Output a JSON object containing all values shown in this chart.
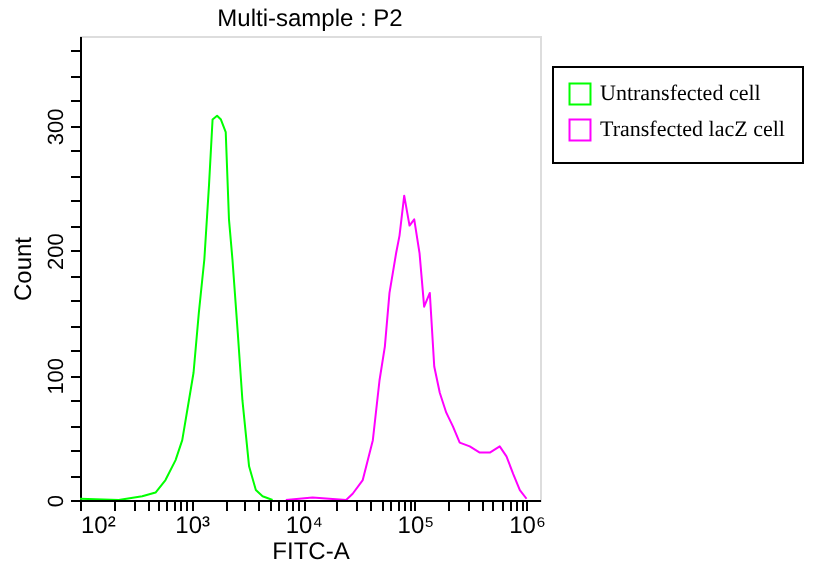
{
  "chart_data": {
    "type": "line",
    "title": "Multi-sample : P2",
    "xlabel": "FITC-A",
    "ylabel": "Count",
    "xlim": [
      100,
      1320000
    ],
    "ylim": [
      0,
      372
    ],
    "xticks": [
      {
        "value": 100,
        "label": "10²"
      },
      {
        "value": 200,
        "label": null
      },
      {
        "value": 300,
        "label": null
      },
      {
        "value": 400,
        "label": null
      },
      {
        "value": 500,
        "label": null
      },
      {
        "value": 600,
        "label": null
      },
      {
        "value": 700,
        "label": null
      },
      {
        "value": 800,
        "label": null
      },
      {
        "value": 900,
        "label": null
      },
      {
        "value": 1000,
        "label": "10³"
      },
      {
        "value": 2000,
        "label": null
      },
      {
        "value": 3000,
        "label": null
      },
      {
        "value": 4000,
        "label": null
      },
      {
        "value": 5000,
        "label": null
      },
      {
        "value": 6000,
        "label": null
      },
      {
        "value": 7000,
        "label": null
      },
      {
        "value": 8000,
        "label": null
      },
      {
        "value": 9000,
        "label": null
      },
      {
        "value": 10000,
        "label": "10⁴"
      },
      {
        "value": 20000,
        "label": null
      },
      {
        "value": 30000,
        "label": null
      },
      {
        "value": 40000,
        "label": null
      },
      {
        "value": 50000,
        "label": null
      },
      {
        "value": 60000,
        "label": null
      },
      {
        "value": 70000,
        "label": null
      },
      {
        "value": 80000,
        "label": null
      },
      {
        "value": 90000,
        "label": null
      },
      {
        "value": 100000,
        "label": "10⁵"
      },
      {
        "value": 200000,
        "label": null
      },
      {
        "value": 300000,
        "label": null
      },
      {
        "value": 400000,
        "label": null
      },
      {
        "value": 500000,
        "label": null
      },
      {
        "value": 600000,
        "label": null
      },
      {
        "value": 700000,
        "label": null
      },
      {
        "value": 800000,
        "label": null
      },
      {
        "value": 900000,
        "label": null
      },
      {
        "value": 1000000,
        "label": "10⁶"
      }
    ],
    "yticks": [
      0,
      {
        "value": 20,
        "label": null
      },
      {
        "value": 40,
        "label": null
      },
      {
        "value": 60,
        "label": null
      },
      {
        "value": 80,
        "label": null
      },
      100,
      {
        "value": 120,
        "label": null
      },
      {
        "value": 140,
        "label": null
      },
      {
        "value": 160,
        "label": null
      },
      {
        "value": 180,
        "label": null
      },
      200,
      {
        "value": 220,
        "label": null
      },
      {
        "value": 240,
        "label": null
      },
      {
        "value": 260,
        "label": null
      },
      {
        "value": 280,
        "label": null
      },
      300,
      {
        "value": 320,
        "label": null
      },
      {
        "value": 340,
        "label": null
      },
      {
        "value": 360,
        "label": null
      }
    ],
    "log": "x",
    "grid": false,
    "legend": "right",
    "marker": "none",
    "line_style": "solid",
    "series": [
      {
        "name": "Untransfected cell",
        "color": "#00ff00",
        "x": [
          100,
          222,
          361,
          475,
          583,
          718,
          824,
          946,
          1040,
          1160,
          1300,
          1430,
          1540,
          1690,
          1830,
          2020,
          2160,
          2320,
          2590,
          2850,
          3270,
          3760,
          4320,
          5310
        ],
        "values": [
          1,
          0,
          3,
          6,
          16,
          32,
          48,
          80,
          102,
          150,
          193,
          252,
          305,
          308,
          305,
          295,
          225,
          193,
          134,
          80,
          27,
          8,
          3,
          0
        ]
      },
      {
        "name": "Transfected lacZ cell",
        "color": "#ff00ff",
        "x": [
          6980,
          12100,
          24200,
          27700,
          34100,
          42000,
          48200,
          53800,
          59200,
          67900,
          72800,
          80200,
          89500,
          98600,
          110000,
          121000,
          136000,
          149000,
          167000,
          191000,
          219000,
          252000,
          310000,
          381000,
          469000,
          575000,
          661000,
          759000,
          871000,
          1000000
        ],
        "values": [
          0,
          2,
          0,
          5,
          16,
          48,
          96,
          123,
          166,
          198,
          212,
          244,
          220,
          225,
          198,
          155,
          166,
          107,
          86,
          70,
          59,
          46,
          43,
          38,
          38,
          43,
          35,
          21,
          8,
          1
        ]
      }
    ]
  }
}
